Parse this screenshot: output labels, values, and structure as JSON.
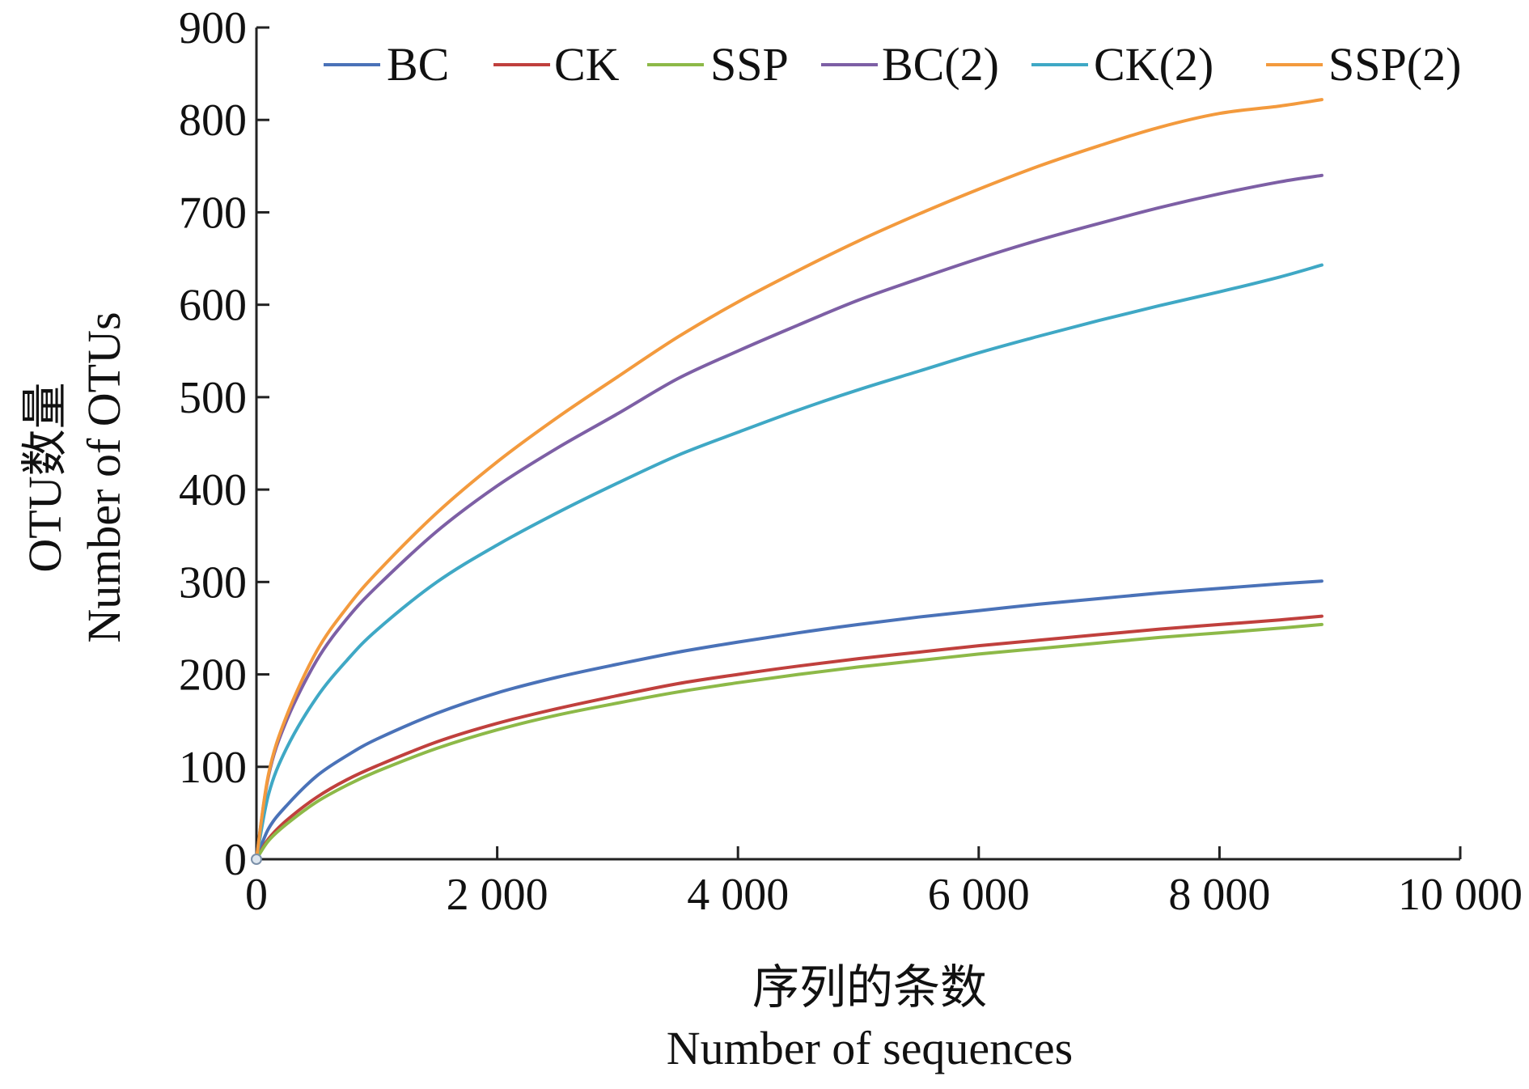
{
  "chart_data": {
    "type": "line",
    "xlabel_zh": "序列的条数",
    "xlabel": "Number of sequences",
    "ylabel_zh": "OTU数量",
    "ylabel": "Number of OTUs",
    "xlim": [
      0,
      10000
    ],
    "ylim": [
      0,
      900
    ],
    "x_ticks": [
      0,
      2000,
      4000,
      6000,
      8000,
      10000
    ],
    "x_tick_labels": [
      "0",
      "2 000",
      "4 000",
      "6 000",
      "8 000",
      "10 000"
    ],
    "y_ticks": [
      0,
      100,
      200,
      300,
      400,
      500,
      600,
      700,
      800,
      900
    ],
    "y_tick_labels": [
      "0",
      "100",
      "200",
      "300",
      "400",
      "500",
      "600",
      "700",
      "800",
      "900"
    ],
    "grid": false,
    "legend_position": "top",
    "x": [
      0,
      100,
      250,
      500,
      750,
      1000,
      1500,
      2000,
      2500,
      3000,
      3500,
      4000,
      4500,
      5000,
      5500,
      6000,
      6500,
      7000,
      7500,
      8000,
      8500,
      8850
    ],
    "series": [
      {
        "name": "BC",
        "color": "#4a72b8",
        "values": [
          0,
          33,
          58,
          90,
          112,
          130,
          158,
          180,
          197,
          211,
          224,
          235,
          245,
          254,
          262,
          269,
          276,
          282,
          288,
          293,
          298,
          301
        ]
      },
      {
        "name": "CK",
        "color": "#c0403d",
        "values": [
          0,
          22,
          42,
          67,
          86,
          101,
          127,
          147,
          163,
          177,
          190,
          200,
          209,
          217,
          224,
          231,
          237,
          243,
          249,
          254,
          259,
          263
        ]
      },
      {
        "name": "SSP",
        "color": "#8db948",
        "values": [
          0,
          20,
          38,
          62,
          80,
          95,
          120,
          140,
          156,
          169,
          181,
          191,
          200,
          208,
          215,
          222,
          228,
          234,
          240,
          245,
          250,
          254
        ]
      },
      {
        "name": "BC(2)",
        "color": "#7d5fa5",
        "values": [
          0,
          90,
          150,
          215,
          260,
          295,
          355,
          404,
          445,
          482,
          520,
          550,
          578,
          605,
          628,
          650,
          670,
          688,
          705,
          720,
          733,
          740
        ]
      },
      {
        "name": "CK(2)",
        "color": "#3fa8c5",
        "values": [
          0,
          70,
          120,
          175,
          215,
          248,
          300,
          340,
          375,
          407,
          437,
          462,
          486,
          508,
          528,
          548,
          566,
          583,
          599,
          614,
          630,
          643
        ]
      },
      {
        "name": "SSP(2)",
        "color": "#f39a3d",
        "values": [
          0,
          92,
          155,
          225,
          272,
          310,
          375,
          430,
          478,
          522,
          565,
          603,
          637,
          669,
          698,
          725,
          750,
          772,
          792,
          807,
          815,
          822
        ]
      }
    ]
  }
}
